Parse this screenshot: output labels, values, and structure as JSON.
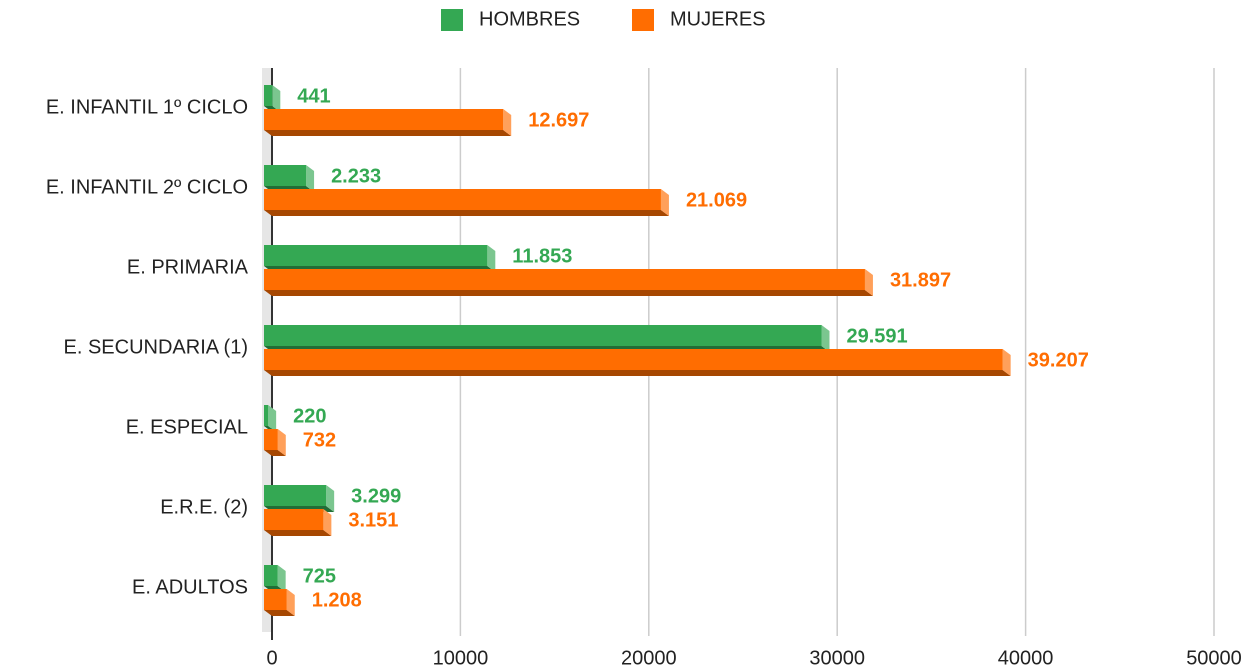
{
  "chart_data": {
    "type": "bar",
    "orientation": "horizontal",
    "categories": [
      "E. INFANTIL 1º CICLO",
      "E. INFANTIL 2º CICLO",
      "E. PRIMARIA",
      "E. SECUNDARIA (1)",
      "E. ESPECIAL",
      "E.R.E. (2)",
      "E. ADULTOS"
    ],
    "series": [
      {
        "name": "HOMBRES",
        "color": "#34a853",
        "values": [
          441,
          2233,
          11853,
          29591,
          220,
          3299,
          725
        ],
        "value_labels": [
          "441",
          "2.233",
          "11.853",
          "29.591",
          "220",
          "3.299",
          "725"
        ]
      },
      {
        "name": "MUJERES",
        "color": "#ff6d01",
        "values": [
          12697,
          21069,
          31897,
          39207,
          732,
          3151,
          1208
        ],
        "value_labels": [
          "12.697",
          "21.069",
          "31.897",
          "39.207",
          "732",
          "3.151",
          "1.208"
        ]
      }
    ],
    "xlim": [
      0,
      50000
    ],
    "xticks": [
      0,
      10000,
      20000,
      30000,
      40000,
      50000
    ],
    "grid": true,
    "legend": "top"
  }
}
